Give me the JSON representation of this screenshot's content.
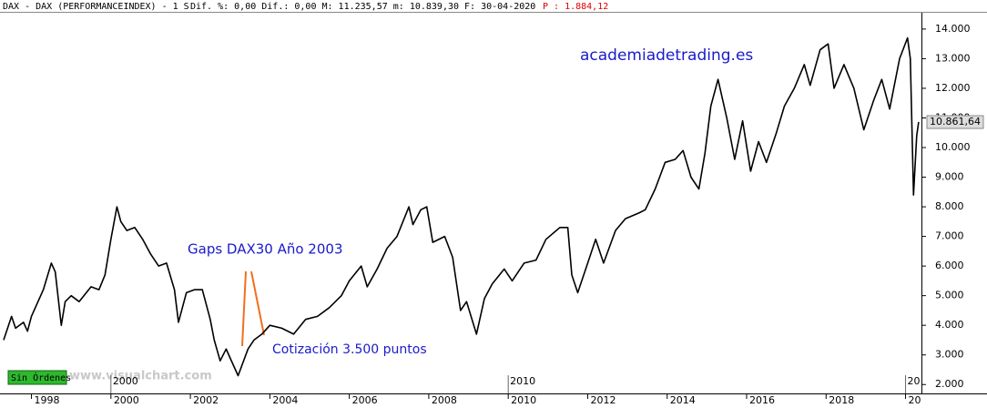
{
  "header": {
    "symbol": "DAX - DAX (PERFORMANCEINDEX) -  1 S",
    "stats": "Dif. %: 0,00 Dif.: 0,00 M: 11.235,57 m: 10.839,30 F: 30-04-2020",
    "p": "P : 1.884,12"
  },
  "buttons": {
    "orders": "Sin Órdenes"
  },
  "watermark": "www.visualchart.com",
  "chart_data": {
    "type": "line",
    "annotations": {
      "site": "academiadetrading.es",
      "gaps": "Gaps DAX30 Año 2003",
      "quote": "Cotización 3.500 puntos",
      "last_price": "10.861,64"
    },
    "x": [
      1997.3,
      1997.5,
      1997.6,
      1997.8,
      1997.9,
      1998.0,
      1998.3,
      1998.5,
      1998.6,
      1998.75,
      1998.85,
      1999.0,
      1999.2,
      1999.5,
      1999.7,
      1999.85,
      2000.0,
      2000.15,
      2000.25,
      2000.4,
      2000.6,
      2000.8,
      2001.0,
      2001.2,
      2001.4,
      2001.6,
      2001.7,
      2001.9,
      2002.1,
      2002.3,
      2002.5,
      2002.6,
      2002.75,
      2002.9,
      2003.0,
      2003.2,
      2003.45,
      2003.6,
      2003.8,
      2004.0,
      2004.3,
      2004.6,
      2004.9,
      2005.2,
      2005.5,
      2005.8,
      2006.0,
      2006.3,
      2006.45,
      2006.7,
      2006.95,
      2007.2,
      2007.5,
      2007.6,
      2007.8,
      2007.95,
      2008.1,
      2008.4,
      2008.6,
      2008.8,
      2008.95,
      2009.2,
      2009.4,
      2009.6,
      2009.9,
      2010.1,
      2010.4,
      2010.7,
      2010.95,
      2011.3,
      2011.5,
      2011.6,
      2011.75,
      2011.95,
      2012.2,
      2012.4,
      2012.7,
      2012.95,
      2013.3,
      2013.45,
      2013.7,
      2013.95,
      2014.2,
      2014.4,
      2014.6,
      2014.8,
      2014.95,
      2015.1,
      2015.28,
      2015.5,
      2015.7,
      2015.9,
      2016.1,
      2016.3,
      2016.5,
      2016.75,
      2016.95,
      2017.2,
      2017.45,
      2017.6,
      2017.85,
      2018.05,
      2018.2,
      2018.45,
      2018.7,
      2018.95,
      2019.2,
      2019.4,
      2019.6,
      2019.85,
      2020.05,
      2020.12,
      2020.2,
      2020.28,
      2020.33
    ],
    "series": [
      {
        "name": "DAX",
        "color": "#000000",
        "values": [
          3500,
          4300,
          3900,
          4100,
          3800,
          4300,
          5200,
          6100,
          5800,
          4000,
          4800,
          5000,
          4800,
          5300,
          5200,
          5700,
          6900,
          8000,
          7500,
          7200,
          7300,
          6900,
          6400,
          6000,
          6100,
          5200,
          4100,
          5100,
          5200,
          5200,
          4200,
          3500,
          2800,
          3200,
          2900,
          2300,
          3200,
          3500,
          3700,
          4000,
          3900,
          3700,
          4200,
          4300,
          4600,
          5000,
          5500,
          6000,
          5300,
          5900,
          6600,
          7000,
          8000,
          7400,
          7900,
          8000,
          6800,
          7000,
          6300,
          4500,
          4800,
          3700,
          4900,
          5400,
          5900,
          5500,
          6100,
          6200,
          6900,
          7300,
          7300,
          5700,
          5100,
          5900,
          6900,
          6100,
          7200,
          7600,
          7800,
          7900,
          8600,
          9500,
          9600,
          9900,
          9000,
          8600,
          9800,
          11400,
          12300,
          11000,
          9600,
          10900,
          9200,
          10200,
          9500,
          10500,
          11400,
          12000,
          12800,
          12100,
          13300,
          13500,
          12000,
          12800,
          12000,
          10600,
          11600,
          12300,
          11300,
          13000,
          13700,
          13000,
          8400,
          10400,
          10860
        ]
      }
    ],
    "xlim": [
      1997.3,
      2020.4
    ],
    "xticks": [
      1998,
      2000,
      2002,
      2004,
      2006,
      2008,
      2010,
      2012,
      2014,
      2016,
      2018,
      {
        "value": 2020,
        "label": "20"
      }
    ],
    "decade_marks": [
      2000,
      2010,
      {
        "value": 2020,
        "label": "20"
      }
    ],
    "ylim": [
      1700,
      14550
    ],
    "yticks": [
      {
        "value": 2000,
        "label": "2.000"
      },
      {
        "value": 3000,
        "label": "3.000"
      },
      {
        "value": 4000,
        "label": "4.000"
      },
      {
        "value": 5000,
        "label": "5.000"
      },
      {
        "value": 6000,
        "label": "6.000"
      },
      {
        "value": 7000,
        "label": "7.000"
      },
      {
        "value": 8000,
        "label": "8.000"
      },
      {
        "value": 9000,
        "label": "9.000"
      },
      {
        "value": 10000,
        "label": "10.000"
      },
      {
        "value": 11000,
        "label": "11.000"
      },
      {
        "value": 12000,
        "label": "12.000"
      },
      {
        "value": 13000,
        "label": "13.000"
      },
      {
        "value": 14000,
        "label": "14.000"
      }
    ]
  }
}
